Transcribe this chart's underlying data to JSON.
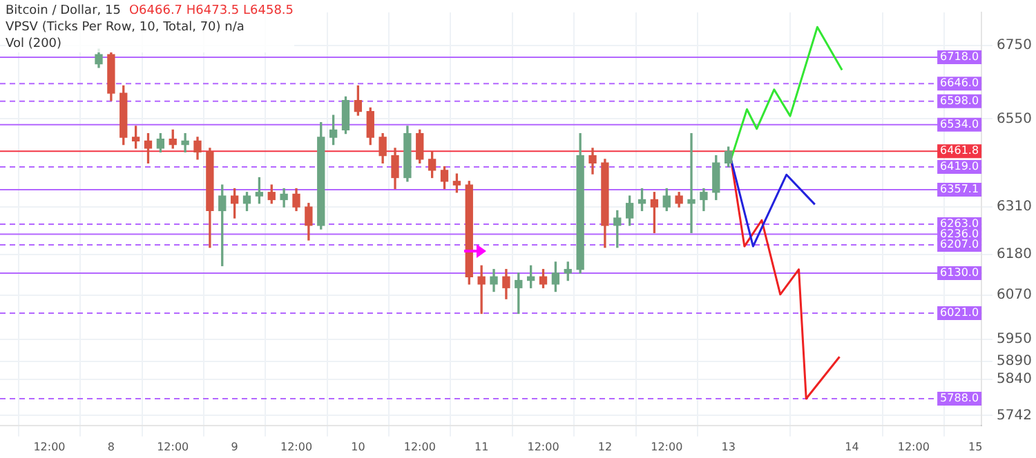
{
  "chart_data": {
    "type": "candlestick",
    "title": "Bitcoin / Dollar, 15",
    "annotations": [
      "O6466.7 H6473.5 L6458.5",
      "VPSV (Ticks Per Row, 10, Total, 70) n/a",
      "Vol (200)"
    ],
    "xlim": [
      "--08-07T02:24",
      "--08-15T01:12"
    ],
    "xticks": [
      {
        "value": "--08-07T12:00",
        "label": "12:00"
      },
      {
        "value": "--08-08",
        "label": "8"
      },
      {
        "value": "--08-08T12:00",
        "label": "12:00"
      },
      {
        "value": "--08-09",
        "label": "9"
      },
      {
        "value": "--08-09T12:00",
        "label": "12:00"
      },
      {
        "value": "--08-10",
        "label": "10"
      },
      {
        "value": "--08-10T12:00",
        "label": "12:00"
      },
      {
        "value": "--08-11",
        "label": "11"
      },
      {
        "value": "--08-11T12:00",
        "label": "12:00"
      },
      {
        "value": "--08-12",
        "label": "12"
      },
      {
        "value": "--08-12T12:00",
        "label": "12:00"
      },
      {
        "value": "--08-13",
        "label": "13"
      },
      {
        "value": "--08-14",
        "label": "14"
      },
      {
        "value": "--08-14T12:00",
        "label": "12:00"
      },
      {
        "value": "--08-15",
        "label": "15"
      }
    ],
    "ylim": [
      5715,
      6840
    ],
    "yticks": [
      5742,
      5840,
      5890,
      5950,
      6070,
      6180,
      6310,
      6550,
      6750
    ],
    "grid": true,
    "series": [
      {
        "colors": [
          "#6ba583",
          "#d75442",
          "#d75442",
          "#d75442",
          "#d75442",
          "#6ba583",
          "#d75442",
          "#6ba583",
          "#d75442",
          "#d75442",
          "#6ba583",
          "#d75442",
          "#6ba583",
          "#6ba583",
          "#d75442",
          "#6ba583",
          "#d75442",
          "#d75442",
          "#6ba583",
          "#6ba583",
          "#6ba583",
          "#d75442",
          "#d75442",
          "#d75442",
          "#d75442",
          "#6ba583",
          "#d75442",
          "#d75442",
          "#d75442",
          "#d75442",
          "#d75442",
          "#d75442",
          "#6ba583",
          "#d75442",
          "#6ba583",
          "#6ba583",
          "#d75442",
          "#6ba583",
          "#6ba583",
          "#6ba583",
          "#d75442",
          "#d75442",
          "#6ba583",
          "#6ba583",
          "#6ba583",
          "#d75442",
          "#6ba583",
          "#d75442",
          "#6ba583",
          "#6ba583",
          "#6ba583",
          "#6ba583"
        ],
        "x": [
          "--08-07T21:36",
          "--08-08T00:00",
          "--08-08T02:24",
          "--08-08T04:48",
          "--08-08T07:12",
          "--08-08T09:36",
          "--08-08T12:00",
          "--08-08T14:24",
          "--08-08T16:48",
          "--08-08T19:12",
          "--08-08T21:36",
          "--08-09T00:00",
          "--08-09T02:24",
          "--08-09T04:48",
          "--08-09T07:12",
          "--08-09T09:36",
          "--08-09T12:00",
          "--08-09T14:24",
          "--08-09T16:48",
          "--08-09T19:12",
          "--08-09T21:36",
          "--08-10T00:00",
          "--08-10T02:24",
          "--08-10T04:48",
          "--08-10T07:12",
          "--08-10T09:36",
          "--08-10T12:00",
          "--08-10T14:24",
          "--08-10T16:48",
          "--08-10T19:12",
          "--08-10T21:36",
          "--08-11T00:00",
          "--08-11T02:24",
          "--08-11T04:48",
          "--08-11T07:12",
          "--08-11T09:36",
          "--08-11T12:00",
          "--08-11T14:24",
          "--08-11T16:48",
          "--08-11T19:12",
          "--08-11T21:36",
          "--08-12T00:00",
          "--08-12T02:24",
          "--08-12T04:48",
          "--08-12T07:12",
          "--08-12T09:36",
          "--08-12T12:00",
          "--08-12T14:24",
          "--08-12T16:48",
          "--08-12T19:12",
          "--08-12T21:36",
          "--08-13T00:00"
        ],
        "ohlc": [
          [
            6700,
            6740,
            6690,
            6725
          ],
          [
            6725,
            6730,
            6600,
            6620
          ],
          [
            6620,
            6640,
            6480,
            6500
          ],
          [
            6500,
            6530,
            6470,
            6490
          ],
          [
            6490,
            6510,
            6430,
            6470
          ],
          [
            6470,
            6510,
            6460,
            6495
          ],
          [
            6495,
            6520,
            6470,
            6480
          ],
          [
            6480,
            6510,
            6460,
            6490
          ],
          [
            6490,
            6500,
            6440,
            6460
          ],
          [
            6460,
            6470,
            6200,
            6300
          ],
          [
            6300,
            6370,
            6150,
            6340
          ],
          [
            6340,
            6360,
            6280,
            6320
          ],
          [
            6320,
            6350,
            6300,
            6340
          ],
          [
            6340,
            6390,
            6320,
            6350
          ],
          [
            6350,
            6370,
            6320,
            6330
          ],
          [
            6330,
            6360,
            6310,
            6345
          ],
          [
            6345,
            6360,
            6300,
            6310
          ],
          [
            6310,
            6320,
            6220,
            6260
          ],
          [
            6260,
            6540,
            6250,
            6500
          ],
          [
            6500,
            6560,
            6480,
            6520
          ],
          [
            6520,
            6610,
            6510,
            6600
          ],
          [
            6600,
            6640,
            6560,
            6570
          ],
          [
            6570,
            6580,
            6480,
            6500
          ],
          [
            6500,
            6510,
            6430,
            6450
          ],
          [
            6450,
            6470,
            6360,
            6390
          ],
          [
            6390,
            6530,
            6380,
            6510
          ],
          [
            6510,
            6520,
            6430,
            6440
          ],
          [
            6440,
            6460,
            6390,
            6410
          ],
          [
            6410,
            6420,
            6360,
            6380
          ],
          [
            6380,
            6400,
            6350,
            6370
          ],
          [
            6370,
            6380,
            6100,
            6120
          ],
          [
            6120,
            6150,
            6020,
            6100
          ],
          [
            6100,
            6140,
            6080,
            6120
          ],
          [
            6120,
            6140,
            6060,
            6090
          ],
          [
            6090,
            6130,
            6020,
            6110
          ],
          [
            6110,
            6150,
            6090,
            6120
          ],
          [
            6120,
            6140,
            6090,
            6100
          ],
          [
            6100,
            6160,
            6080,
            6130
          ],
          [
            6130,
            6160,
            6110,
            6140
          ],
          [
            6140,
            6510,
            6130,
            6450
          ],
          [
            6450,
            6470,
            6400,
            6430
          ],
          [
            6430,
            6440,
            6200,
            6260
          ],
          [
            6260,
            6300,
            6200,
            6280
          ],
          [
            6280,
            6340,
            6260,
            6320
          ],
          [
            6320,
            6360,
            6300,
            6330
          ],
          [
            6330,
            6350,
            6240,
            6310
          ],
          [
            6310,
            6360,
            6300,
            6340
          ],
          [
            6340,
            6350,
            6310,
            6320
          ],
          [
            6320,
            6510,
            6240,
            6330
          ],
          [
            6330,
            6360,
            6300,
            6350
          ],
          [
            6350,
            6450,
            6330,
            6430
          ],
          [
            6430,
            6473.5,
            6420,
            6461.8
          ]
        ]
      },
      {
        "type": "line",
        "color": "#33e633",
        "x": [
          "--08-13T00:30",
          "--08-13T03:36",
          "--08-13T05:31",
          "--08-13T08:53",
          "--08-13T12:00",
          "--08-13T17:17",
          "--08-13T22:05"
        ],
        "values": [
          6440,
          6576,
          6523,
          6630,
          6558,
          6800,
          6683
        ]
      },
      {
        "type": "line",
        "color": "#2222dd",
        "x": [
          "--08-13T00:30",
          "--08-13T04:48",
          "--08-13T11:17",
          "--08-13T16:48"
        ],
        "values": [
          6440,
          6203,
          6398,
          6317
        ]
      },
      {
        "type": "line",
        "color": "#ee2222",
        "x": [
          "--08-13T00:30",
          "--08-13T03:07",
          "--08-13T06:29",
          "--08-13T10:05",
          "--08-13T13:41",
          "--08-13T15:07",
          "--08-13T21:36"
        ],
        "values": [
          6440,
          6203,
          6274,
          6072,
          6140,
          5788,
          5902
        ]
      }
    ],
    "ref_lines": [
      {
        "axis": "y",
        "value": 6718.0,
        "label": "6718.0",
        "color": "#b366ff",
        "line_style": "solid"
      },
      {
        "axis": "y",
        "value": 6646.0,
        "label": "6646.0",
        "color": "#b366ff",
        "line_style": "dashed"
      },
      {
        "axis": "y",
        "value": 6598.0,
        "label": "6598.0",
        "color": "#b366ff",
        "line_style": "dashed"
      },
      {
        "axis": "y",
        "value": 6534.0,
        "label": "6534.0",
        "color": "#b366ff",
        "line_style": "solid"
      },
      {
        "axis": "y",
        "value": 6461.8,
        "label": "6461.8",
        "color": "#f23645",
        "line_style": "solid"
      },
      {
        "axis": "y",
        "value": 6419.0,
        "label": "6419.0",
        "color": "#b366ff",
        "line_style": "dashed"
      },
      {
        "axis": "y",
        "value": 6357.1,
        "label": "6357.1",
        "color": "#b366ff",
        "line_style": "solid"
      },
      {
        "axis": "y",
        "value": 6263.0,
        "label": "6263.0",
        "color": "#b366ff",
        "line_style": "dashed"
      },
      {
        "axis": "y",
        "value": 6236.0,
        "label": "6236.0",
        "color": "#b366ff",
        "line_style": "solid"
      },
      {
        "axis": "y",
        "value": 6207.0,
        "label": "6207.0",
        "color": "#b366ff",
        "line_style": "dashed"
      },
      {
        "axis": "y",
        "value": 6130.0,
        "label": "6130.0",
        "color": "#b366ff",
        "line_style": "solid"
      },
      {
        "axis": "y",
        "value": 6021.0,
        "label": "6021.0",
        "color": "#b366ff",
        "line_style": "dashed"
      },
      {
        "axis": "y",
        "value": 5788.0,
        "label": "5788.0",
        "color": "#b366ff",
        "line_style": "dashed"
      }
    ]
  }
}
